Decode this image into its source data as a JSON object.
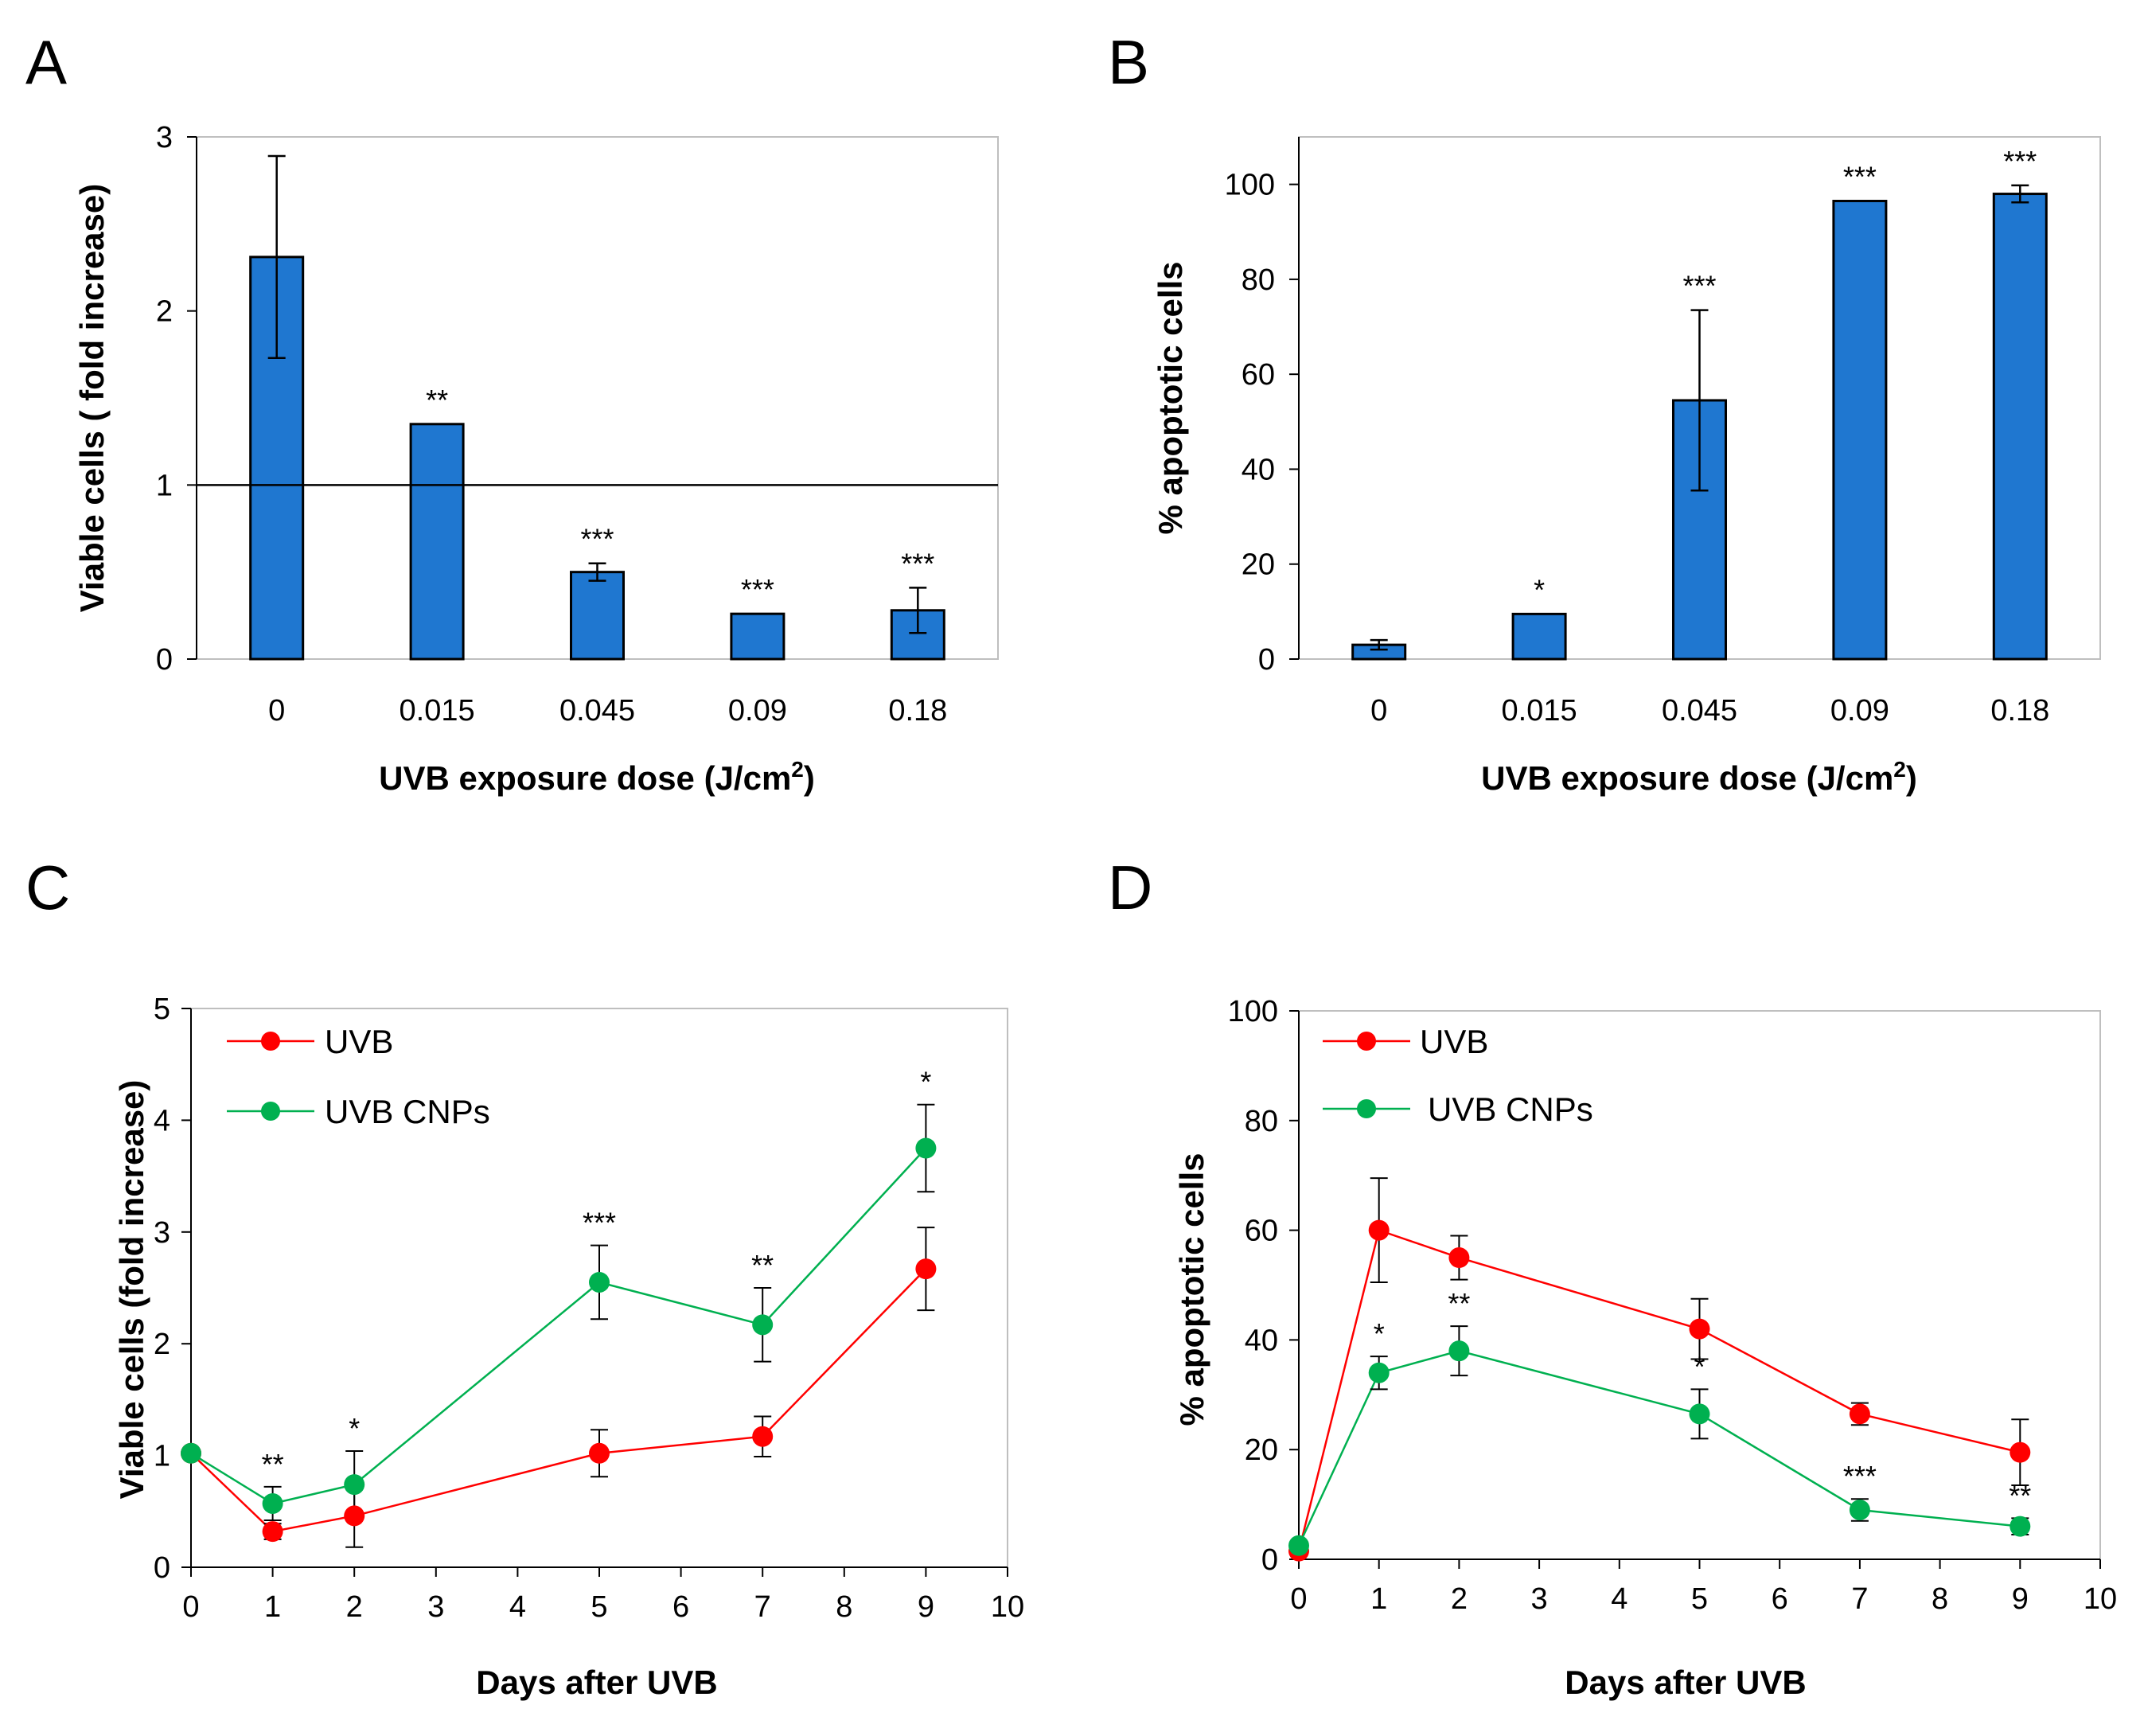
{
  "chart_data": [
    {
      "panel": "A",
      "type": "bar",
      "title": "",
      "xlabel": "UVB exposure dose (J/cm",
      "xlabel_sup": "2",
      "xlabel_end": ")",
      "ylabel": "Viable cells ( fold increase)",
      "categories": [
        "0",
        "0.015",
        "0.045",
        "0.09",
        "0.18"
      ],
      "values": [
        2.31,
        1.35,
        0.5,
        0.26,
        0.28
      ],
      "errors": [
        0.58,
        0,
        0.05,
        0,
        0.13
      ],
      "significance": [
        "",
        "**",
        "***",
        "***",
        "***"
      ],
      "ylim": [
        0,
        3
      ],
      "yticks": [
        "0",
        "1",
        "2",
        "3"
      ],
      "reference_line": 1,
      "bar_color": "#1f77d0"
    },
    {
      "panel": "B",
      "type": "bar",
      "title": "",
      "xlabel": "UVB exposure dose (J/cm",
      "xlabel_sup": "2",
      "xlabel_end": ")",
      "ylabel": "% apoptotic cells",
      "categories": [
        "0",
        "0.015",
        "0.045",
        "0.09",
        "0.18"
      ],
      "values": [
        3,
        9.5,
        54.5,
        96.5,
        98
      ],
      "errors": [
        1,
        0,
        19,
        0,
        1.8
      ],
      "significance": [
        "",
        "*",
        "***",
        "***",
        "***"
      ],
      "ylim": [
        0,
        110
      ],
      "yticks": [
        "0",
        "20",
        "40",
        "60",
        "80",
        "100"
      ],
      "bar_color": "#1f77d0"
    },
    {
      "panel": "C",
      "type": "line",
      "title": "",
      "xlabel": "Days after UVB",
      "ylabel": "Viable cells (fold increase)",
      "xlim": [
        0,
        10
      ],
      "ylim": [
        0,
        5
      ],
      "xticks": [
        "0",
        "1",
        "2",
        "3",
        "4",
        "5",
        "6",
        "7",
        "8",
        "9",
        "10"
      ],
      "yticks": [
        "0",
        "1",
        "2",
        "3",
        "4",
        "5"
      ],
      "series": [
        {
          "name": "UVB",
          "color": "#ff0000",
          "x": [
            0,
            1,
            2,
            5,
            7,
            9
          ],
          "y": [
            1.02,
            0.32,
            0.46,
            1.02,
            1.17,
            2.67
          ],
          "err": [
            0,
            0.07,
            0.28,
            0.21,
            0.18,
            0.37
          ]
        },
        {
          "name": "UVB CNPs",
          "color": "#00b050",
          "x": [
            0,
            1,
            2,
            5,
            7,
            9
          ],
          "y": [
            1.02,
            0.57,
            0.74,
            2.55,
            2.17,
            3.75
          ],
          "err": [
            0,
            0.15,
            0.3,
            0.33,
            0.33,
            0.39
          ]
        }
      ],
      "annotations": [
        {
          "x": 1,
          "text": "**"
        },
        {
          "x": 2,
          "text": "*"
        },
        {
          "x": 5,
          "text": "***"
        },
        {
          "x": 7,
          "text": "**"
        },
        {
          "x": 9,
          "text": "*"
        }
      ]
    },
    {
      "panel": "D",
      "type": "line",
      "title": "",
      "xlabel": "Days after UVB",
      "ylabel": "% apoptotic cells",
      "xlim": [
        0,
        10
      ],
      "ylim": [
        0,
        100
      ],
      "xticks": [
        "0",
        "1",
        "2",
        "3",
        "4",
        "5",
        "6",
        "7",
        "8",
        "9",
        "10"
      ],
      "yticks": [
        "0",
        "20",
        "40",
        "60",
        "80",
        "100"
      ],
      "series": [
        {
          "name": "UVB",
          "color": "#ff0000",
          "x": [
            0,
            1,
            2,
            5,
            7,
            9
          ],
          "y": [
            1.5,
            60,
            55,
            42,
            26.5,
            19.5
          ],
          "err": [
            0,
            9.5,
            4,
            5.5,
            2,
            6
          ]
        },
        {
          "name": "UVB CNPs",
          "color": "#00b050",
          "x": [
            0,
            1,
            2,
            5,
            7,
            9
          ],
          "y": [
            2.5,
            34,
            38,
            26.5,
            9,
            6
          ],
          "err": [
            0,
            3,
            4.5,
            4.5,
            2,
            1.5
          ]
        }
      ],
      "annotations": [
        {
          "x": 1,
          "text": "*"
        },
        {
          "x": 2,
          "text": "**"
        },
        {
          "x": 5,
          "text": "*"
        },
        {
          "x": 7,
          "text": "***"
        },
        {
          "x": 9,
          "text": "**"
        }
      ]
    }
  ]
}
